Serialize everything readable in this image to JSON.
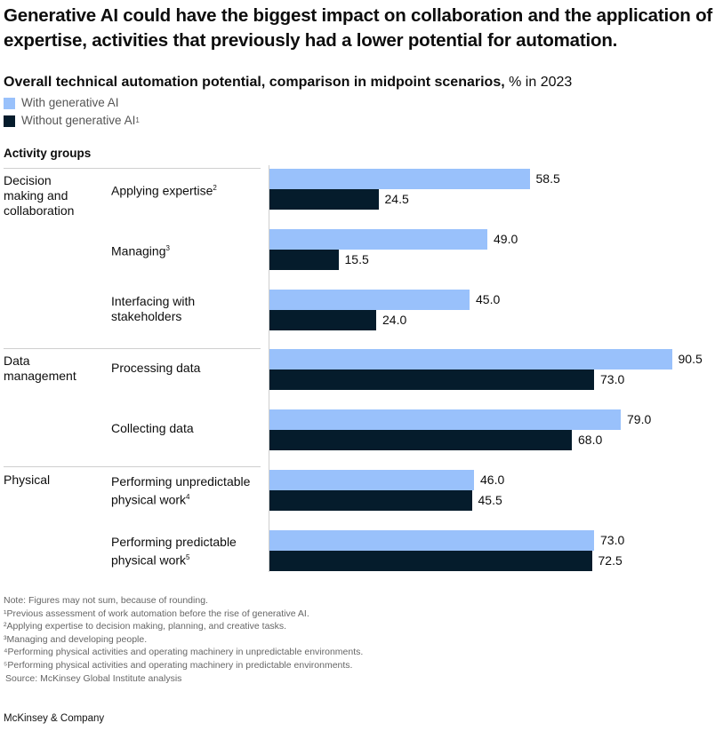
{
  "title": "Generative AI could have the biggest impact on collaboration and the application of expertise, activities that previously had a lower potential for automation.",
  "subtitle_main": "Overall technical automation potential, comparison in midpoint scenarios,",
  "subtitle_unit": "% in 2023",
  "activity_groups_header": "Activity groups",
  "colors": {
    "with": "#99c1fb",
    "without": "#051c2c"
  },
  "chart_data": {
    "type": "bar",
    "orientation": "horizontal",
    "series": [
      {
        "name": "With generative AI",
        "values": [
          58.5,
          49.0,
          45.0,
          90.5,
          79.0,
          46.0,
          73.0
        ]
      },
      {
        "name": "Without generative AI",
        "values": [
          24.5,
          15.5,
          24.0,
          73.0,
          68.0,
          45.5,
          72.5
        ]
      }
    ],
    "legend_footnote": "1",
    "groups": [
      {
        "label": "Decision making and collaboration",
        "start": 0,
        "end": 2
      },
      {
        "label": "Data management",
        "start": 3,
        "end": 4
      },
      {
        "label": "Physical",
        "start": 5,
        "end": 6
      }
    ],
    "categories": [
      {
        "label": "Applying expertise",
        "sup": "2"
      },
      {
        "label": "Managing",
        "sup": "3"
      },
      {
        "label": "Interfacing with stakeholders",
        "sup": ""
      },
      {
        "label": "Processing data",
        "sup": ""
      },
      {
        "label": "Collecting data",
        "sup": ""
      },
      {
        "label": "Performing unpredictable physical work",
        "sup": "4"
      },
      {
        "label": "Performing predictable physical work",
        "sup": "5"
      }
    ],
    "value_labels_with": [
      "58.5",
      "49.0",
      "45.0",
      "90.5",
      "79.0",
      "46.0",
      "73.0"
    ],
    "value_labels_without": [
      "24.5",
      "15.5",
      "24.0",
      "73.0",
      "68.0",
      "45.5",
      "72.5"
    ]
  },
  "notes": [
    "Note: Figures may not sum, because of rounding.",
    "¹Previous assessment of work automation before the rise of generative AI.",
    "²Applying expertise to decision making, planning, and creative tasks.",
    "³Managing and developing people.",
    "⁴Performing physical activities and operating machinery in unpredictable environments.",
    "⁵Performing physical activities and operating machinery in predictable environments.",
    "Source: McKinsey Global Institute analysis"
  ],
  "brand": "McKinsey & Company"
}
